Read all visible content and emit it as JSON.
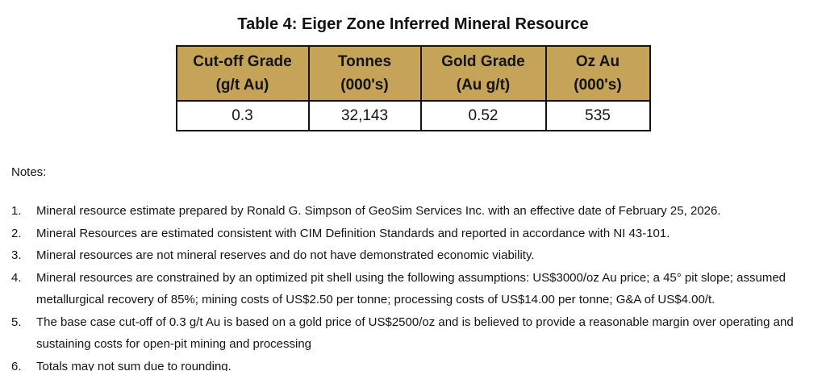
{
  "page": {
    "title": "Table 4: Eiger Zone Inferred Mineral Resource"
  },
  "table": {
    "header_bg": "#C5A45A",
    "border_color": "#141414",
    "columns": [
      {
        "line1": "Cut-off Grade",
        "line2": "(g/t Au)"
      },
      {
        "line1": "Tonnes",
        "line2": "(000's)"
      },
      {
        "line1": "Gold Grade",
        "line2": "(Au g/t)"
      },
      {
        "line1": "Oz Au",
        "line2": "(000's)"
      }
    ],
    "rows": [
      [
        "0.3",
        "32,143",
        "0.52",
        "535"
      ]
    ]
  },
  "notes": {
    "heading": "Notes:",
    "items": [
      {
        "num": "1.",
        "text": "Mineral resource estimate prepared by Ronald G. Simpson of GeoSim Services Inc. with an effective date of February 25, 2026."
      },
      {
        "num": "2.",
        "text": "Mineral Resources are estimated consistent with CIM Definition Standards and reported in accordance with NI 43-101."
      },
      {
        "num": "3.",
        "text": "Mineral resources are not mineral reserves and do not have demonstrated economic viability."
      },
      {
        "num": "4.",
        "text": "Mineral resources are constrained by an optimized pit shell using the following assumptions: US$3000/oz Au price; a 45° pit slope; assumed metallurgical recovery of 85%; mining costs of US$2.50 per tonne; processing costs of US$14.00 per tonne; G&A of US$4.00/t."
      },
      {
        "num": "5.",
        "text": "The base case cut-off of 0.3 g/t Au is based on a gold price of US$2500/oz and is believed to provide a reasonable margin over operating and sustaining costs for open-pit mining and processing"
      },
      {
        "num": "6.",
        "text": "Totals may not sum due to rounding."
      }
    ]
  }
}
